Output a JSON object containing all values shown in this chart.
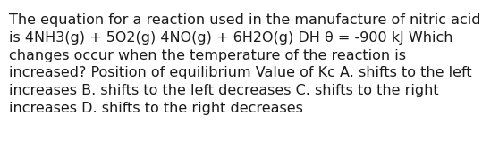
{
  "text": "The equation for a reaction used in the manufacture of nitric acid\nis 4NH3(g) + 5O2(g) 4NO(g) + 6H2O(g) DH θ = -900 kJ Which\nchanges occur when the temperature of the reaction is\nincreased? Position of equilibrium Value of Kc A. shifts to the left\nincreases B. shifts to the left decreases C. shifts to the right\nincreases D. shifts to the right decreases",
  "background_color": "#ffffff",
  "text_color": "#1a1a1a",
  "font_size": 11.5,
  "font_family": "DejaVu Sans",
  "fig_width": 5.58,
  "fig_height": 1.67,
  "dpi": 100
}
